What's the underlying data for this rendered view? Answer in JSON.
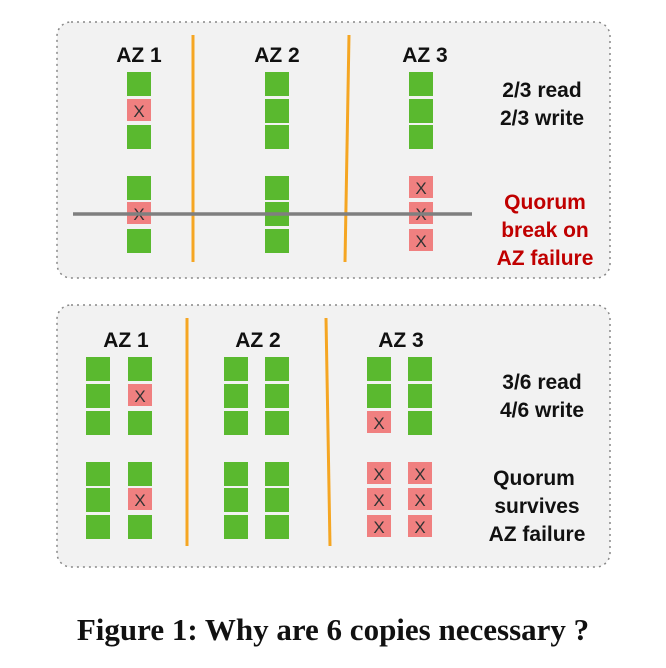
{
  "colors": {
    "panel_fill": "#f2f2f2",
    "panel_border": "#888888",
    "copy_ok": "#5ab92f",
    "copy_failed": "#f08080",
    "divider": "#f5a623",
    "strike_line": "#7f7f7f",
    "alert_text": "#c00000"
  },
  "icons": {
    "failed_copy": "x-mark-icon"
  },
  "panels": [
    {
      "az_labels": [
        "AZ 1",
        "AZ 2",
        "AZ 3"
      ],
      "copies_per_az": 2,
      "failed": {
        "az1": [
          [
            0,
            1
          ],
          [
            1,
            1
          ]
        ],
        "az2": [],
        "az3": [
          [
            1,
            0
          ],
          [
            1,
            1
          ],
          [
            1,
            2
          ]
        ]
      },
      "quorum_line": "2/3 read",
      "quorum_line2": "2/3 write",
      "outcome": [
        "Quorum",
        "break on",
        "AZ failure"
      ],
      "outcome_is_alert": true
    },
    {
      "az_labels": [
        "AZ 1",
        "AZ 2",
        "AZ 3"
      ],
      "copies_per_az": 4,
      "failed": {
        "az1": [
          [
            1,
            1
          ],
          [
            3,
            1
          ]
        ],
        "az2": [],
        "az3": [
          [
            0,
            2
          ],
          [
            2,
            0
          ],
          [
            2,
            1
          ],
          [
            2,
            2
          ],
          [
            3,
            0
          ],
          [
            3,
            1
          ],
          [
            3,
            2
          ]
        ]
      },
      "quorum_line": "3/6 read",
      "quorum_line2": "4/6 write",
      "outcome": [
        "Quorum",
        "survives",
        "AZ failure"
      ],
      "outcome_is_alert": false
    }
  ],
  "caption": "Figure 1: Why are 6 copies necessary ?",
  "x_mark": "X"
}
